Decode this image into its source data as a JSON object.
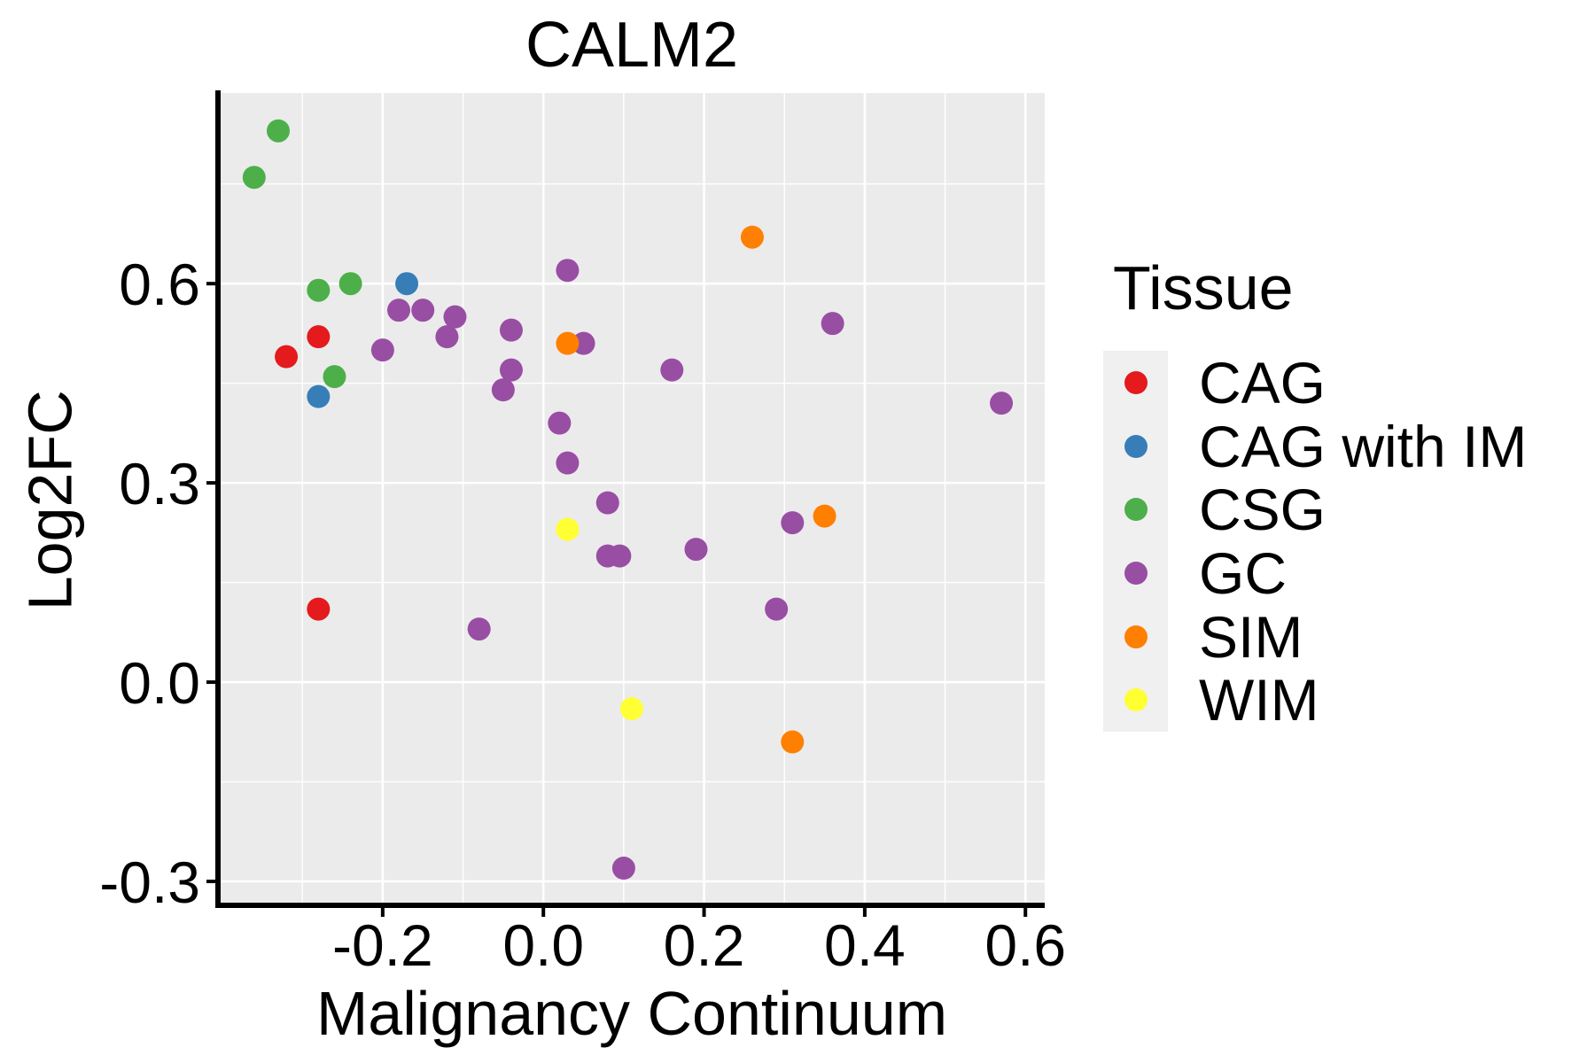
{
  "chart_data": {
    "type": "scatter",
    "title": "CALM2",
    "xlabel": "Malignancy Continuum",
    "ylabel": "Log2FC",
    "legend_title": "Tissue",
    "legend_position": "right",
    "grid": "on",
    "panel_background": "#EBEBEB",
    "gridline_color": "#FFFFFF",
    "axis_color": "#000000",
    "legend_key_background": "#F0F0F0",
    "x_domain": [
      -0.405,
      0.624
    ],
    "y_domain": [
      -0.336,
      0.887
    ],
    "x_ticks": [
      -0.2,
      0.0,
      0.2,
      0.4,
      0.6
    ],
    "x_tick_labels": [
      "-0.2",
      "0.0",
      "0.2",
      "0.4",
      "0.6"
    ],
    "x_minor_ticks": [
      -0.3,
      -0.1,
      0.1,
      0.3,
      0.5
    ],
    "y_ticks": [
      -0.3,
      0.0,
      0.3,
      0.6
    ],
    "y_tick_labels": [
      "-0.3",
      "0.0",
      "0.3",
      "0.6"
    ],
    "y_minor_ticks": [
      -0.15,
      0.15,
      0.45,
      0.75
    ],
    "series": [
      {
        "name": "CAG",
        "color": "#E41A1C",
        "points": [
          [
            -0.28,
            0.52
          ],
          [
            -0.32,
            0.49
          ],
          [
            -0.28,
            0.11
          ]
        ]
      },
      {
        "name": "CAG with IM",
        "color": "#377EB8",
        "points": [
          [
            -0.17,
            0.6
          ],
          [
            -0.28,
            0.43
          ]
        ]
      },
      {
        "name": "CSG",
        "color": "#4DAF4A",
        "points": [
          [
            -0.33,
            0.83
          ],
          [
            -0.36,
            0.76
          ],
          [
            -0.28,
            0.59
          ],
          [
            -0.24,
            0.6
          ],
          [
            -0.26,
            0.46
          ]
        ]
      },
      {
        "name": "GC",
        "color": "#984EA3",
        "points": [
          [
            0.03,
            0.62
          ],
          [
            -0.18,
            0.56
          ],
          [
            -0.15,
            0.56
          ],
          [
            -0.11,
            0.55
          ],
          [
            -0.12,
            0.52
          ],
          [
            -0.04,
            0.53
          ],
          [
            -0.2,
            0.5
          ],
          [
            0.05,
            0.51
          ],
          [
            -0.04,
            0.47
          ],
          [
            -0.05,
            0.44
          ],
          [
            0.02,
            0.39
          ],
          [
            0.03,
            0.33
          ],
          [
            0.08,
            0.27
          ],
          [
            0.08,
            0.19
          ],
          [
            0.095,
            0.19
          ],
          [
            0.16,
            0.47
          ],
          [
            0.19,
            0.2
          ],
          [
            0.29,
            0.11
          ],
          [
            0.31,
            0.24
          ],
          [
            0.36,
            0.54
          ],
          [
            0.57,
            0.42
          ],
          [
            -0.08,
            0.08
          ],
          [
            0.1,
            -0.28
          ]
        ]
      },
      {
        "name": "SIM",
        "color": "#FF7F00",
        "points": [
          [
            0.26,
            0.67
          ],
          [
            0.03,
            0.51
          ],
          [
            0.35,
            0.25
          ],
          [
            0.31,
            -0.09
          ]
        ]
      },
      {
        "name": "WIM",
        "color": "#FFFF33",
        "points": [
          [
            0.03,
            0.23
          ],
          [
            0.11,
            -0.04
          ]
        ]
      }
    ],
    "point_radius_px": 13
  }
}
